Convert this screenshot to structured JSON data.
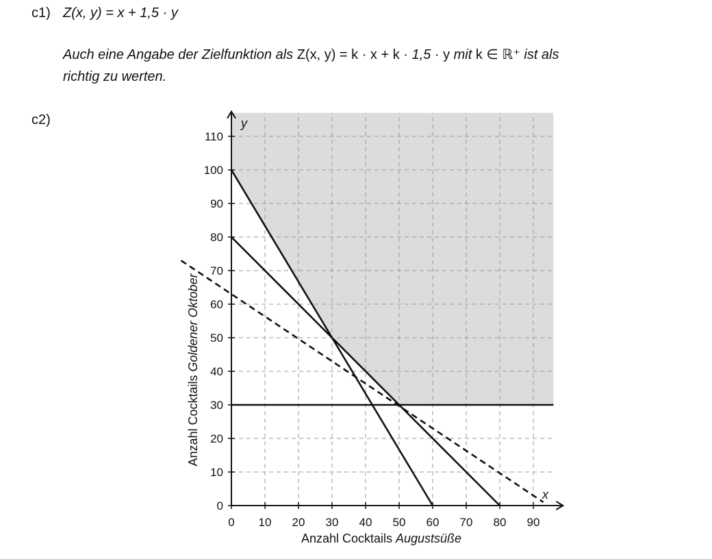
{
  "part_c1": {
    "label": "c1)",
    "formula": "Z(x, y) = x + 1,5 · y",
    "note_part1": "Auch eine Angabe der Zielfunktion als ",
    "note_formula": "Z(x, y) = k · x + k · ",
    "note_factor": "1,5",
    "note_formula_end": " · y",
    "note_part2": " mit ",
    "note_condition": "k ∈ ℝ⁺",
    "note_part3": " ist als",
    "note_line2": "richtig zu werten."
  },
  "part_c2": {
    "label": "c2)"
  },
  "chart_data": {
    "type": "line",
    "xlabel_prefix": "Anzahl Cocktails ",
    "xlabel_italic": "Augustsüße",
    "ylabel_prefix": "Anzahl Cocktails ",
    "ylabel_italic": "Goldener Oktober",
    "x_axis_symbol": "x",
    "y_axis_symbol": "y",
    "xlim": [
      0,
      96
    ],
    "ylim": [
      0,
      117
    ],
    "x_ticks": [
      0,
      10,
      20,
      30,
      40,
      50,
      60,
      70,
      80,
      90
    ],
    "y_ticks": [
      0,
      10,
      20,
      30,
      40,
      50,
      60,
      70,
      80,
      90,
      100,
      110
    ],
    "grid": true,
    "feasible_region": {
      "fill": "#dcdcdc",
      "vertices": [
        [
          0,
          117
        ],
        [
          0,
          100
        ],
        [
          30,
          50
        ],
        [
          50,
          30
        ],
        [
          96,
          30
        ],
        [
          96,
          117
        ]
      ]
    },
    "lines": [
      {
        "points": [
          [
            0,
            100
          ],
          [
            60,
            0
          ]
        ],
        "style": "solid"
      },
      {
        "points": [
          [
            0,
            80
          ],
          [
            80,
            0
          ]
        ],
        "style": "solid"
      },
      {
        "points": [
          [
            0,
            30
          ],
          [
            96,
            30
          ]
        ],
        "style": "solid"
      },
      {
        "points": [
          [
            -15,
            73
          ],
          [
            93,
            1
          ]
        ],
        "style": "dashed"
      }
    ]
  }
}
